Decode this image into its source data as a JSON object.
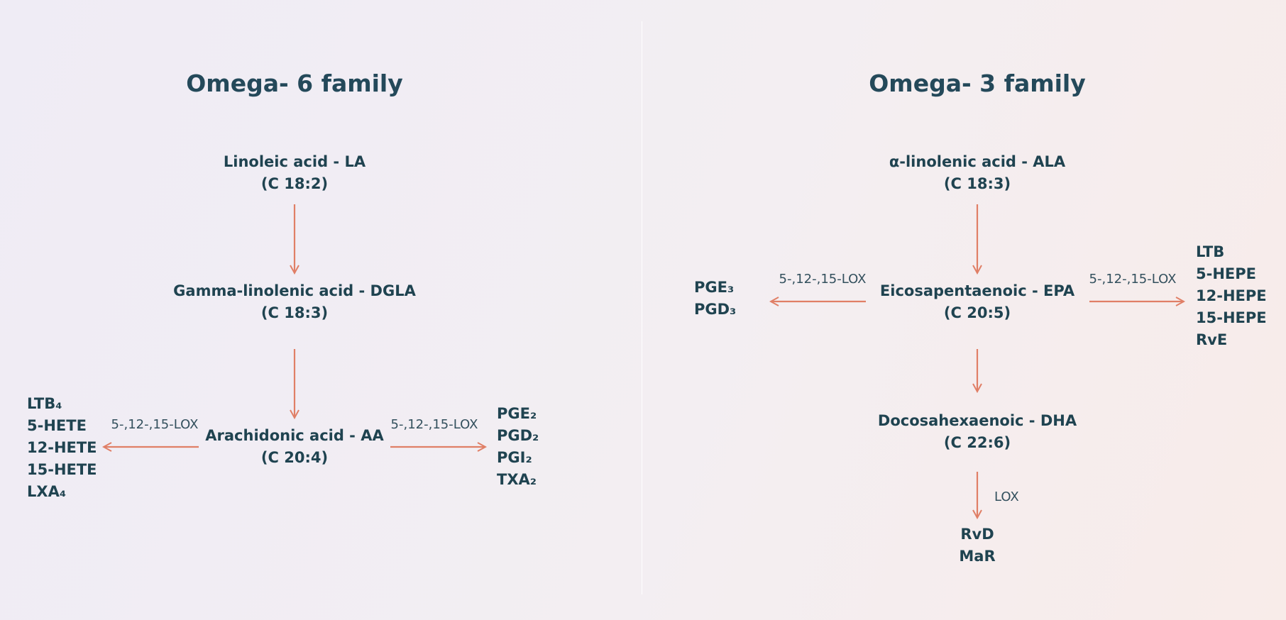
{
  "left": {
    "title": "Omega- 6 family",
    "la": {
      "name": "Linoleic acid - LA",
      "formula": "(C 18:2)"
    },
    "dgla": {
      "name": "Gamma-linolenic acid - DGLA",
      "formula": "(C 18:3)"
    },
    "aa": {
      "name": "Arachidonic acid - AA",
      "formula": "(C 20:4)"
    },
    "left_label": "5-,12-,15-LOX",
    "right_label": "5-,12-,15-LOX",
    "left_products": [
      "LTB₄",
      "5-HETE",
      "12-HETE",
      "15-HETE",
      "LXA₄"
    ],
    "right_products": [
      "PGE₂",
      "PGD₂",
      "PGI₂",
      "TXA₂"
    ]
  },
  "right": {
    "title": "Omega- 3 family",
    "ala": {
      "name": "α-linolenic acid - ALA",
      "formula": "(C 18:3)"
    },
    "epa": {
      "name": "Eicosapentaenoic - EPA",
      "formula": "(C 20:5)"
    },
    "dha": {
      "name": "Docosahexaenoic - DHA",
      "formula": "(C 22:6)"
    },
    "left_label": "5-,12-,15-LOX",
    "right_label": "5-,12-,15-LOX",
    "lox_label": "LOX",
    "left_products": [
      "PGE₃",
      "PGD₃"
    ],
    "right_products": [
      "LTB",
      "5-HEPE",
      "12-HEPE",
      "15-HEPE",
      "RvE"
    ],
    "bottom_products": [
      "RvD",
      "MaR"
    ]
  },
  "colors": {
    "arrow": "#e07f66",
    "text": "#1f4350",
    "title": "#24495a"
  }
}
